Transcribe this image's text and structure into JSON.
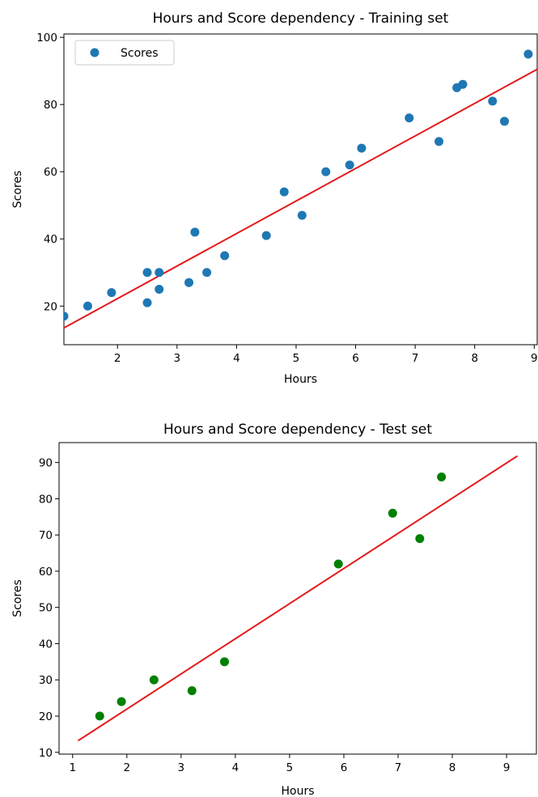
{
  "chart_data": [
    {
      "type": "scatter",
      "title": "Hours and Score dependency - Training set",
      "xlabel": "Hours",
      "ylabel": "Scores",
      "xlim": [
        1.1,
        9.05
      ],
      "ylim": [
        8.5,
        101
      ],
      "xticks": [
        2,
        3,
        4,
        5,
        6,
        7,
        8,
        9
      ],
      "yticks": [
        20,
        40,
        60,
        80,
        100
      ],
      "legend": {
        "placement": "top-left",
        "entries": [
          "Scores"
        ]
      },
      "series": [
        {
          "name": "Scores",
          "kind": "points",
          "color": "#1f77b4",
          "x": [
            1.1,
            1.5,
            1.9,
            2.5,
            2.5,
            2.7,
            2.7,
            3.2,
            3.3,
            3.5,
            3.8,
            4.5,
            4.8,
            5.1,
            5.5,
            5.9,
            6.1,
            6.9,
            7.4,
            7.7,
            7.8,
            8.3,
            8.5,
            8.9
          ],
          "y": [
            17,
            20,
            24,
            21,
            30,
            25,
            30,
            27,
            42,
            30,
            35,
            41,
            54,
            47,
            60,
            62,
            67,
            76,
            69,
            85,
            86,
            81,
            75,
            95
          ]
        },
        {
          "kind": "line",
          "color": "#e41a1c",
          "x": [
            1.1,
            9.05
          ],
          "y": [
            13.5,
            90.5
          ]
        }
      ]
    },
    {
      "type": "scatter",
      "title": "Hours and Score dependency - Test set",
      "xlabel": "Hours",
      "ylabel": "Scores",
      "xlim": [
        0.75,
        9.55
      ],
      "ylim": [
        9.5,
        95.5
      ],
      "xticks": [
        1,
        2,
        3,
        4,
        5,
        6,
        7,
        8,
        9
      ],
      "yticks": [
        10,
        20,
        30,
        40,
        50,
        60,
        70,
        80,
        90
      ],
      "series": [
        {
          "kind": "points",
          "color": "#008000",
          "x": [
            1.5,
            1.9,
            2.5,
            3.2,
            3.8,
            5.9,
            6.9,
            7.4,
            7.8
          ],
          "y": [
            20,
            24,
            30,
            27,
            35,
            62,
            76,
            69,
            86
          ]
        },
        {
          "kind": "line",
          "color": "#e41a1c",
          "x": [
            1.1,
            9.2
          ],
          "y": [
            13.2,
            91.8
          ]
        }
      ]
    }
  ]
}
